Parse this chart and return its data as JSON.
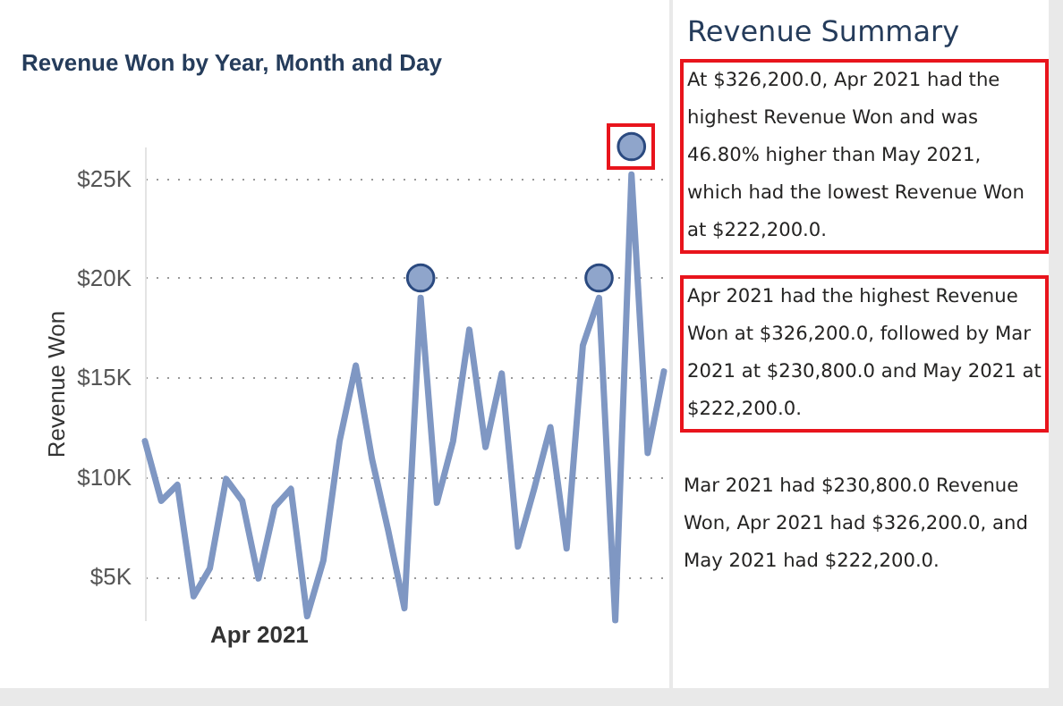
{
  "chart_data": [
    {
      "type": "line",
      "title": "Revenue Won by Year, Month and Day",
      "ylabel": "Revenue Won",
      "categories": [
        null,
        null,
        null,
        null,
        null,
        null,
        null,
        "Apr 2021",
        null,
        null,
        null,
        null,
        null,
        null,
        null,
        null,
        null,
        null,
        null,
        null,
        null,
        null,
        null,
        null,
        null,
        null,
        null,
        null,
        null,
        null,
        null,
        null,
        null
      ],
      "series": [
        {
          "type": "line",
          "color": "#7f97c3",
          "values": [
            11800,
            8800,
            9600,
            4000,
            5400,
            9900,
            8800,
            4900,
            8500,
            9400,
            3000,
            5800,
            11800,
            15600,
            10900,
            7300,
            3400,
            19000,
            8700,
            11800,
            17400,
            11500,
            15200,
            6500,
            9400,
            12500,
            6400,
            16600,
            19000,
            2800,
            25200,
            11200,
            15300
          ]
        },
        {
          "type": "scatter",
          "color": "#8fa5cb",
          "marker": "circle",
          "values": [
            null,
            null,
            null,
            null,
            null,
            null,
            null,
            null,
            null,
            null,
            null,
            null,
            null,
            null,
            null,
            null,
            null,
            20000,
            null,
            null,
            null,
            null,
            null,
            null,
            null,
            null,
            null,
            null,
            20000,
            null,
            26600,
            null,
            null
          ]
        }
      ],
      "ylim": [
        2800,
        26600
      ],
      "yticks": [
        {
          "value": 5000,
          "label": "$5K"
        },
        {
          "value": 10000,
          "label": "$10K"
        },
        {
          "value": 15000,
          "label": "$15K"
        },
        {
          "value": 20000,
          "label": "$20K"
        },
        {
          "value": 25000,
          "label": "$25K"
        }
      ],
      "grid": "y",
      "line_style": "solid"
    },
    {
      "type": "other",
      "title": "Revenue Summary",
      "annotations": [
        "At $326,200.0, Apr 2021 had the highest Revenue Won and was 46.80% higher than May 2021, which had the lowest Revenue Won at $222,200.0.",
        "Apr 2021 had the highest Revenue Won at $326,200.0, followed by Mar 2021 at $230,800.0 and May 2021 at $222,200.0.",
        "Mar 2021 had $230,800.0 Revenue Won, Apr 2021 had $326,200.0, and May 2021 had $222,200.0."
      ]
    }
  ]
}
